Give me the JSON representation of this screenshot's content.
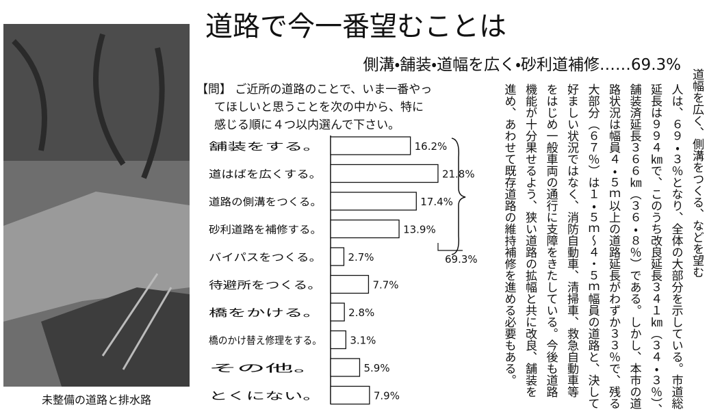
{
  "title": "道路で今一番望むことは",
  "subtitle": "側溝・舗装・道幅を広く・砂利道補修……69.3%",
  "question": [
    "【問】 ご近所の道路のことで、いま一番やっ",
    "てほしいと思うことを次の中から、特に",
    "感じる順に４つ以内選んで下さい。"
  ],
  "photo_caption": "未整備の道路と排水路",
  "article": [
    "道幅を広く、側溝をつくる、などを望む",
    "人は、６９・３％となり、全体の大部分を示している。市道総",
    "延長は９９４㎞で、このうち改良延長３４１㎞（３４・３％）、",
    "舗装済延長３６６㎞（３６・８％）である。しかし、本市の道",
    "路状況は幅員４・５ｍ以上の道路延長がわずか３３％で、残る",
    "大部分（６７％）は１・５ｍ～４・５ｍ幅員の道路と、決して",
    "好ましい状況ではなく、消防自動車、清掃車、救急自動車等",
    "をはじめ一般車両の通行に支障をきたしている。今後も道路",
    "機能が十分果せるよう、狭い道路の拡幅と共に改良、舗装を",
    "進め、あわせて既存道路の維持補修を進める必要もある。"
  ],
  "chart_data": {
    "type": "bar",
    "categories": [
      "舗装をする。",
      "道はばを広くする。",
      "道路の側溝をつくる。",
      "砂利道路を補修する。",
      "バイパスをつくる。",
      "待避所をつくる。",
      "橋をかける。",
      "橋のかけ替え修理をする。",
      "その他。",
      "とくにない。"
    ],
    "values": [
      16.2,
      21.8,
      17.4,
      13.9,
      2.7,
      7.7,
      2.8,
      3.1,
      5.9,
      7.9
    ],
    "value_labels": [
      "16.2%",
      "21.8%",
      "17.4%",
      "13.9%",
      "2.7%",
      "7.7%",
      "2.8%",
      "3.1%",
      "5.9%",
      "7.9%"
    ],
    "total_label": "69.3%",
    "color": "#ffffff"
  }
}
